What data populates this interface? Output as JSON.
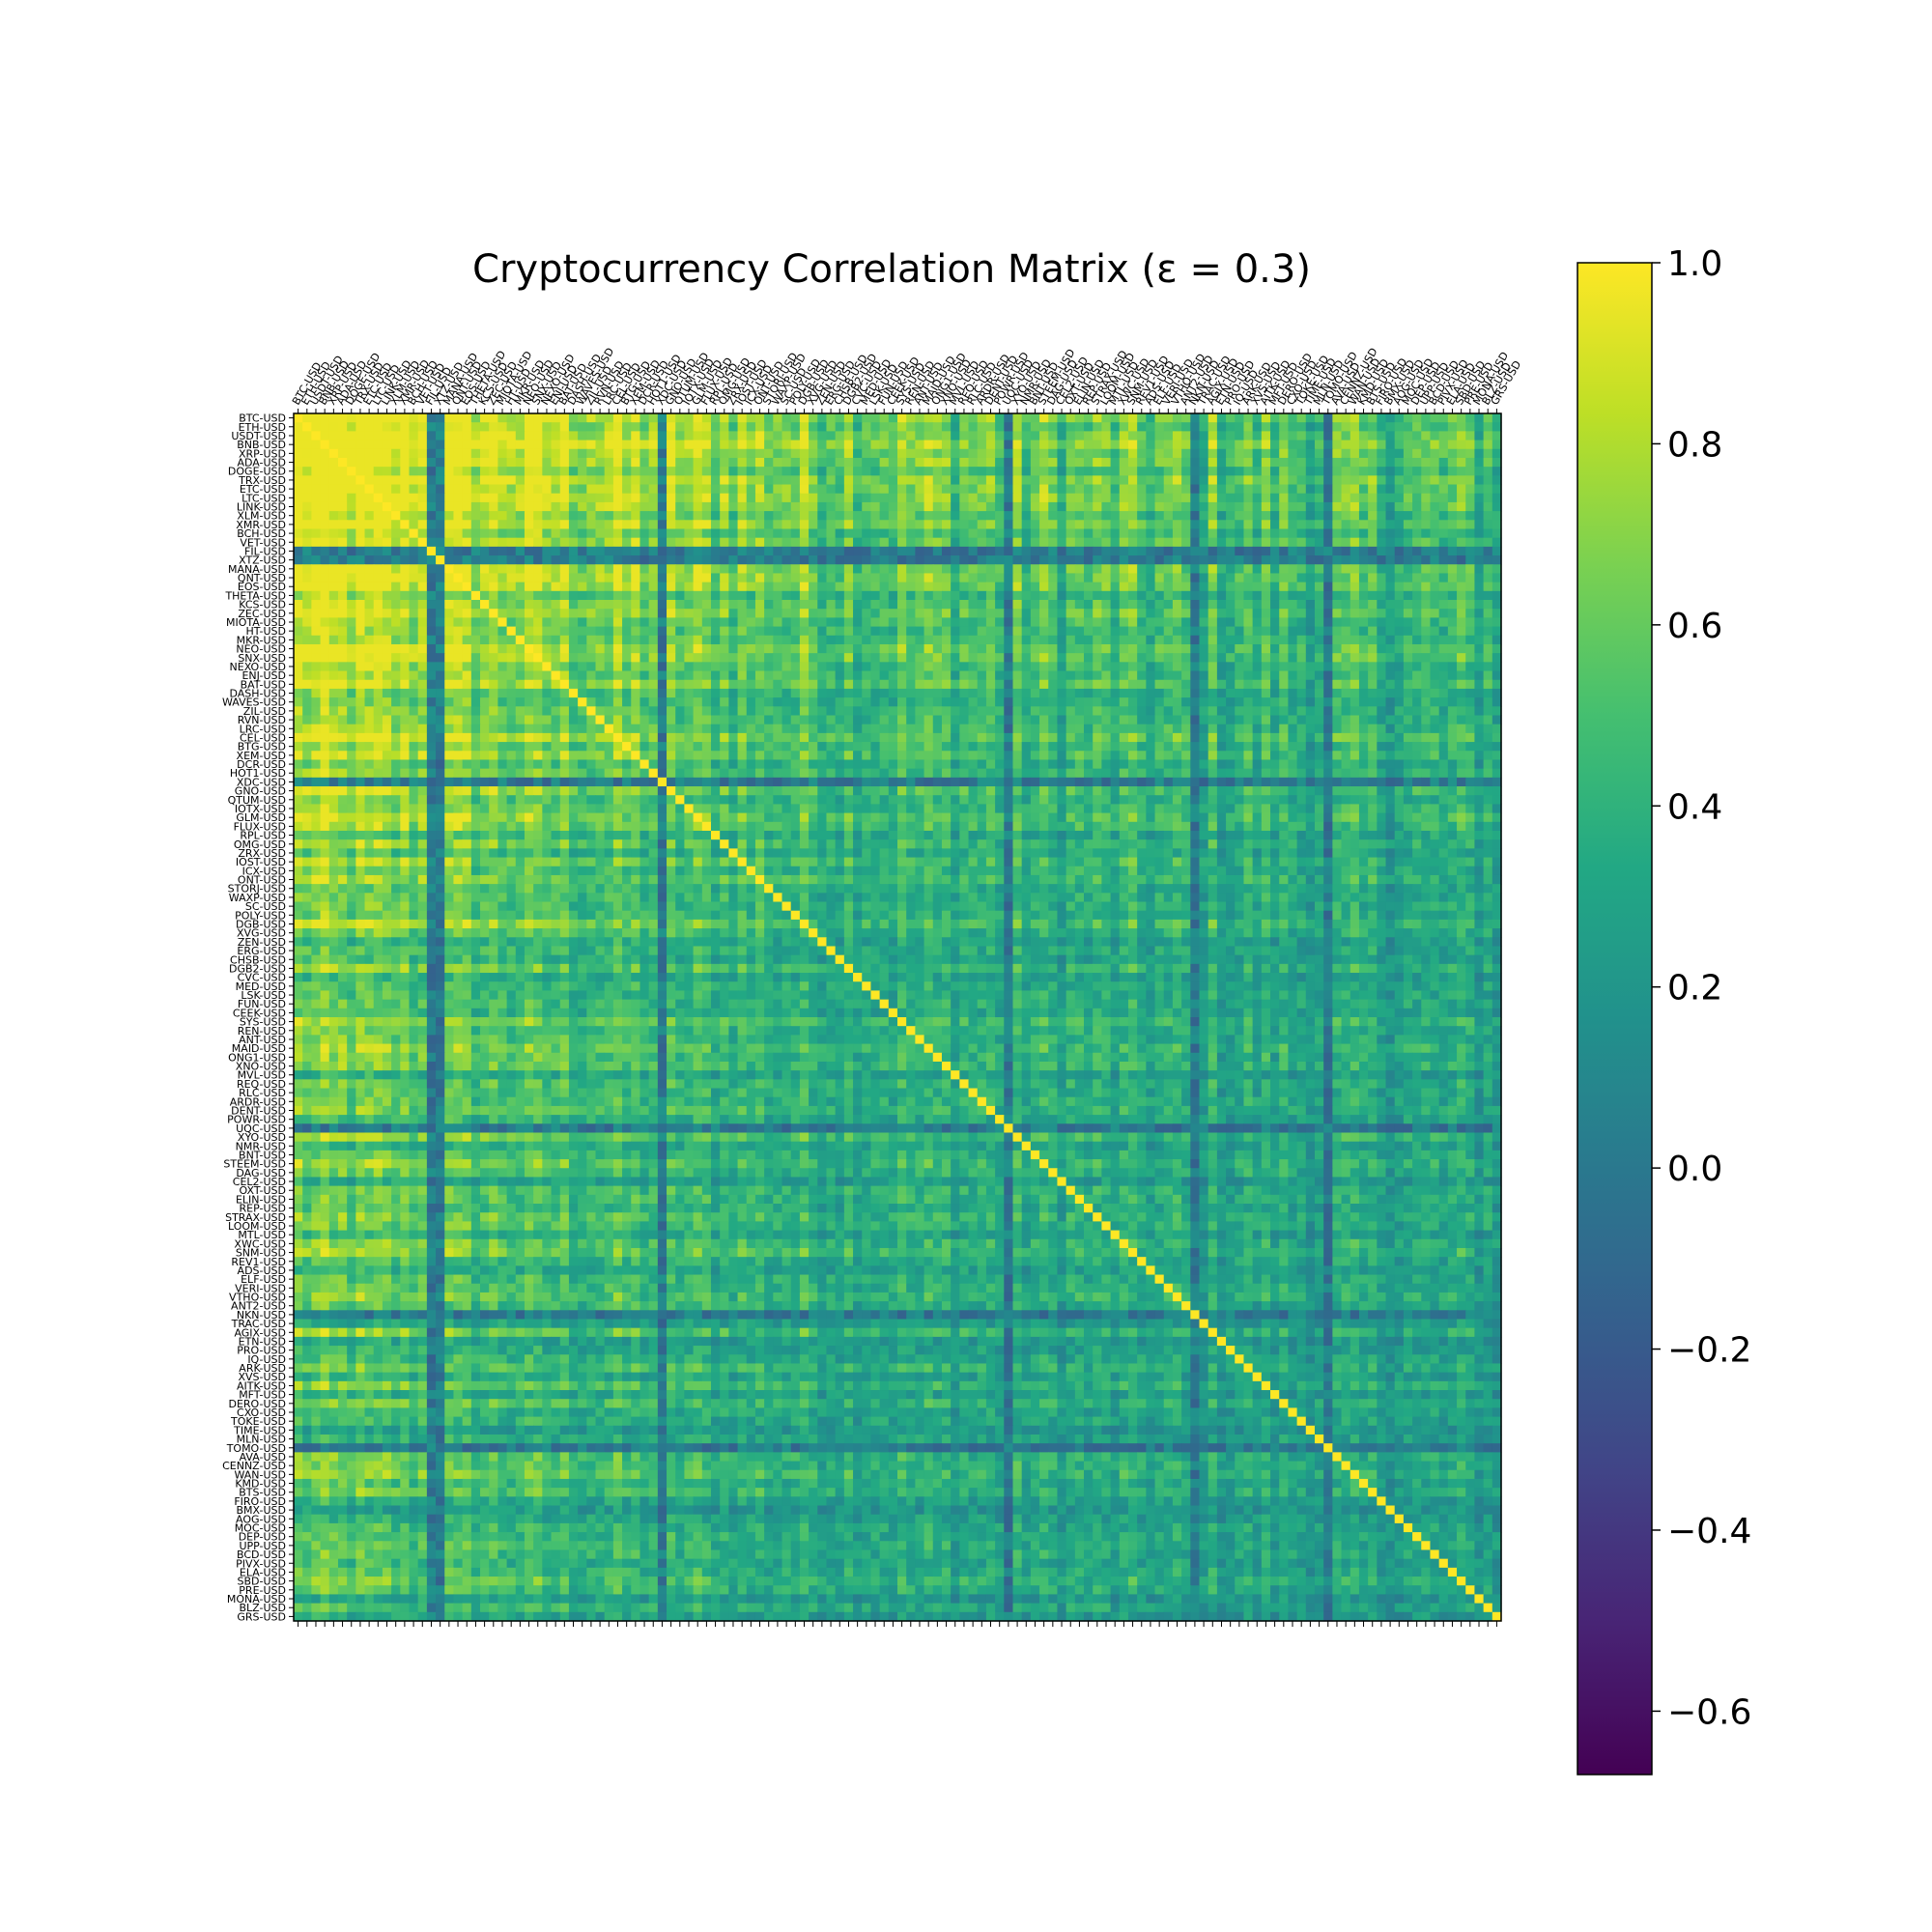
{
  "chart_data": {
    "type": "heatmap",
    "title": "Cryptocurrency Correlation Matrix (ε = 0.3)",
    "xlabel": "",
    "ylabel": "",
    "tick_labels": [
      "BTC-USD",
      "ETH-USD",
      "USDT-USD",
      "BNB-USD",
      "XRP-USD",
      "ADA-USD",
      "DOGE-USD",
      "TRX-USD",
      "ETC-USD",
      "LTC-USD",
      "LINK-USD",
      "XLM-USD",
      "XMR-USD",
      "BCH-USD",
      "VET-USD",
      "FIL-USD",
      "XTZ-USD",
      "MANA-USD",
      "QNT-USD",
      "EOS-USD",
      "THETA-USD",
      "KCS-USD",
      "ZEC-USD",
      "MIOTA-USD",
      "HT-USD",
      "MKR-USD",
      "NEO-USD",
      "SNX-USD",
      "NEXO-USD",
      "ENJ-USD",
      "BAT-USD",
      "DASH-USD",
      "WAVES-USD",
      "ZIL-USD",
      "RVN-USD",
      "LRC-USD",
      "CEL-USD",
      "BTG-USD",
      "XEM-USD",
      "DCR-USD",
      "HOT1-USD",
      "XDC-USD",
      "GNO-USD",
      "QTUM-USD",
      "IOTX-USD",
      "GLM-USD",
      "FLUX-USD",
      "RPL-USD",
      "OMG-USD",
      "ZRX-USD",
      "IOST-USD",
      "ICX-USD",
      "ONT-USD",
      "STORJ-USD",
      "WAXP-USD",
      "SC-USD",
      "POLY-USD",
      "DGB-USD",
      "XVG-USD",
      "ZEN-USD",
      "ERG-USD",
      "CHSB-USD",
      "DGB2-USD",
      "CVC-USD",
      "MED-USD",
      "LSK-USD",
      "FUN-USD",
      "CEEK-USD",
      "SYS-USD",
      "REN-USD",
      "ANT-USD",
      "MAID-USD",
      "ONG1-USD",
      "XNO-USD",
      "MVL-USD",
      "REQ-USD",
      "RLC-USD",
      "ARDR-USD",
      "DENT-USD",
      "POWR-USD",
      "UQC-USD",
      "XYO-USD",
      "NMR-USD",
      "BNT-USD",
      "STEEM-USD",
      "DAG-USD",
      "CEL2-USD",
      "OXT-USD",
      "ELIN-USD",
      "REP-USD",
      "STRAX-USD",
      "LOOM-USD",
      "MTL-USD",
      "XWC-USD",
      "SNM-USD",
      "REV1-USD",
      "ADS-USD",
      "ELF-USD",
      "VERI-USD",
      "VTHO-USD",
      "ANT2-USD",
      "NKN-USD",
      "TRAC-USD",
      "AGIX-USD",
      "ETN-USD",
      "PRO-USD",
      "IQ-USD",
      "ARK-USD",
      "XVS-USD",
      "AITK-USD",
      "MFT-USD",
      "DERO-USD",
      "CXO-USD",
      "TOKE-USD",
      "TIME-USD",
      "MLN-USD",
      "TOMO-USD",
      "AVA-USD",
      "CENNZ-USD",
      "WAN-USD",
      "KMD-USD",
      "BTS-USD",
      "FIRO-USD",
      "BMX-USD",
      "AOG-USD",
      "MOC-USD",
      "DEP-USD",
      "UPP-USD",
      "BCD-USD",
      "PIVX-USD",
      "ELA-USD",
      "SBD-USD",
      "PRE-USD",
      "MONA-USD",
      "BLZ-USD",
      "GRS-USD"
    ],
    "n": 138,
    "vmin": -0.67,
    "vmax": 1.0,
    "colorbar": {
      "ticks": [
        1.0,
        0.8,
        0.6,
        0.4,
        0.2,
        0.0,
        -0.2,
        -0.4,
        -0.6
      ],
      "tick_labels": [
        "1.0",
        "0.8",
        "0.6",
        "0.4",
        "0.2",
        "0.0",
        "−0.2",
        "−0.4",
        "−0.6"
      ]
    },
    "colormap": "viridis",
    "diagonal_value": 1.0,
    "note_values": "cell values approximated; strong block of high correlation among top-ranked coins, near-zero/negative rows around index 15, 41, 101"
  }
}
